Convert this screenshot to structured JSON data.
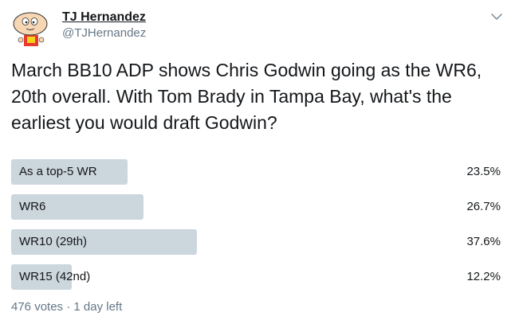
{
  "author": {
    "display_name": "TJ Hernandez",
    "handle": "@TJHernandez"
  },
  "tweet": {
    "text": "March BB10 ADP shows Chris Godwin going as the WR6, 20th overall. With Tom Brady in Tampa Bay, what's the earliest you would draft Godwin?"
  },
  "poll": {
    "options": [
      {
        "label": "As a top-5 WR",
        "percent_label": "23.5%",
        "percent": 23.5
      },
      {
        "label": "WR6",
        "percent_label": "26.7%",
        "percent": 26.7
      },
      {
        "label": "WR10 (29th)",
        "percent_label": "37.6%",
        "percent": 37.6
      },
      {
        "label": "WR15 (42nd)",
        "percent_label": "12.2%",
        "percent": 12.2
      }
    ],
    "meta": "476 votes · 1 day left"
  },
  "icons": {
    "avatar": "stewie-avatar",
    "caret": "chevron-down-icon"
  },
  "colors": {
    "bar": "#ccd6dd",
    "text": "#14171a",
    "secondary": "#657786"
  }
}
